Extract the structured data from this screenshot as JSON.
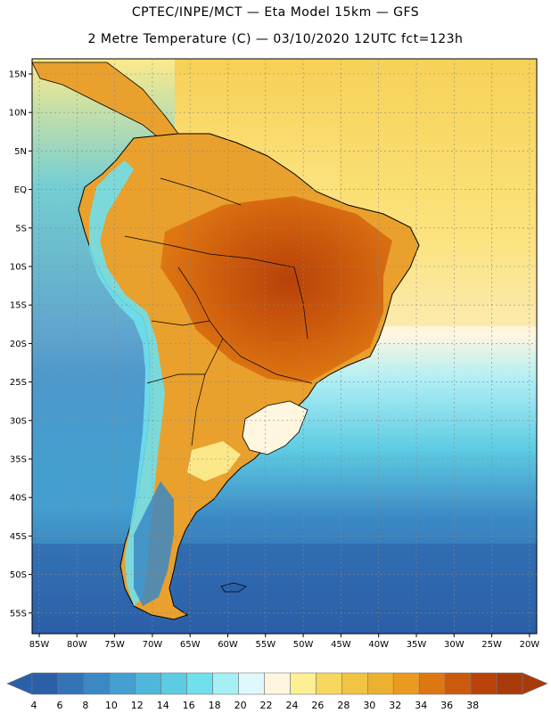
{
  "header": {
    "line1": "CPTEC/INPE/MCT —  Eta Model 15km — GFS",
    "line2": "2 Metre Temperature (C) — 03/10/2020 12UTC fct=123h"
  },
  "map": {
    "lat_labels": [
      "15N",
      "10N",
      "5N",
      "EQ",
      "5S",
      "10S",
      "15S",
      "20S",
      "25S",
      "30S",
      "35S",
      "40S",
      "45S",
      "50S",
      "55S"
    ],
    "lon_labels": [
      "85W",
      "80W",
      "75W",
      "70W",
      "65W",
      "60W",
      "55W",
      "50W",
      "45W",
      "40W",
      "35W",
      "30W",
      "25W",
      "20W"
    ],
    "colors": {
      "ocean_north": "#f7cf54",
      "ocean_south_deep": "#2e64ab",
      "land_hot": "#c65a12",
      "land_warm": "#e9a02d",
      "andes": "#6fd3e8",
      "coast_line": "#000000"
    }
  },
  "colorbar": {
    "labels": [
      "4",
      "6",
      "8",
      "10",
      "12",
      "14",
      "16",
      "18",
      "20",
      "22",
      "24",
      "26",
      "28",
      "30",
      "32",
      "34",
      "36",
      "38"
    ],
    "colors": [
      "#2b5fa8",
      "#3374b6",
      "#3b88c4",
      "#44a0d0",
      "#4fb7dc",
      "#5dcbe2",
      "#6fe0ec",
      "#a6f0f5",
      "#dff8fb",
      "#fff6e0",
      "#fdef94",
      "#f7d75e",
      "#f2c443",
      "#ecb12f",
      "#eb9a20",
      "#de7612",
      "#cc5a0c",
      "#b8420a",
      "#a83a0a"
    ],
    "left_arrow_color": "#2b5fa8",
    "right_arrow_color": "#a83a0a"
  }
}
